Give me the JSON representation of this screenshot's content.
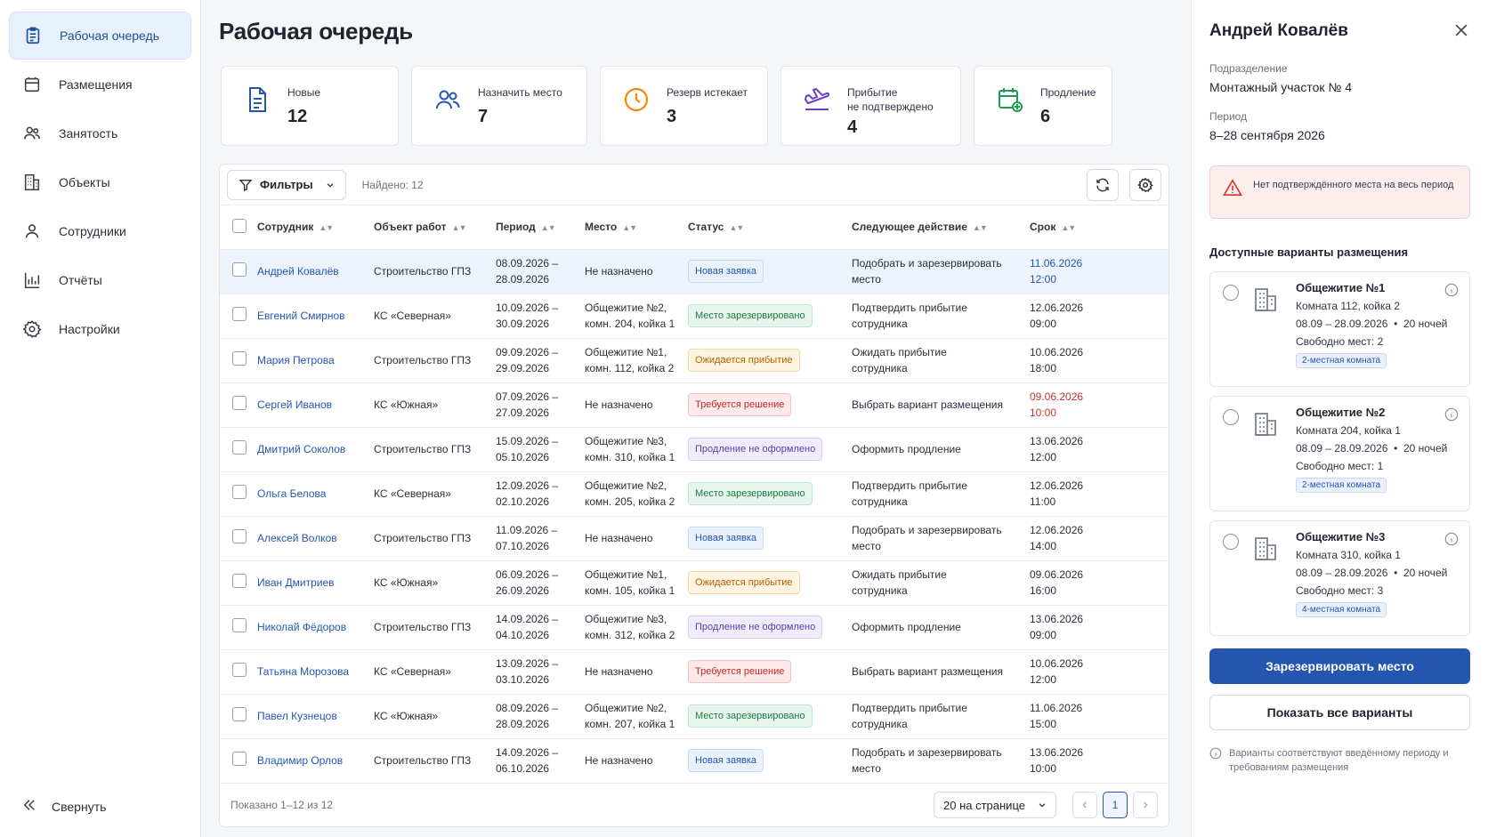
{
  "sidebar": {
    "items": [
      {
        "label": "Рабочая очередь",
        "icon": "clipboard-icon"
      },
      {
        "label": "Размещения",
        "icon": "bed-icon"
      },
      {
        "label": "Занятость",
        "icon": "users-icon"
      },
      {
        "label": "Объекты",
        "icon": "building-icon"
      },
      {
        "label": "Сотрудники",
        "icon": "user-icon"
      },
      {
        "label": "Отчёты",
        "icon": "chart-icon"
      },
      {
        "label": "Настройки",
        "icon": "gear-icon"
      }
    ],
    "collapse_label": "Свернуть"
  },
  "page": {
    "title": "Рабочая очередь"
  },
  "stats": [
    {
      "label": "Новые",
      "value": "12",
      "icon": "document-icon",
      "color": "#2456b0"
    },
    {
      "label": "Назначить место",
      "value": "7",
      "icon": "users-icon",
      "color": "#2456b0"
    },
    {
      "label": "Резерв истекает",
      "value": "3",
      "icon": "clock-icon",
      "color": "#f08a00"
    },
    {
      "label_line1": "Прибытие",
      "label_line2": "не подтверждено",
      "value": "4",
      "icon": "plane-arrival-icon",
      "color": "#6a3fc1"
    },
    {
      "label": "Продление",
      "value": "6",
      "icon": "calendar-add-icon",
      "color": "#1e9a55"
    }
  ],
  "toolbar": {
    "filters_label": "Фильтры",
    "found": "Найдено: 12"
  },
  "table": {
    "headers": [
      "Сотрудник",
      "Объект работ",
      "Период",
      "Место",
      "Статус",
      "Следующее действие",
      "Срок"
    ],
    "rows": [
      {
        "emp": "Андрей Ковалёв",
        "obj": "Строительство ГПЗ",
        "p1": "08.09.2026 –",
        "p2": "28.09.2026",
        "m1": "Не назначено",
        "m2": "",
        "status": "Новая заявка",
        "st": "new",
        "a1": "Подобрать и зарезервировать",
        "a2": "место",
        "d1": "11.06.2026",
        "d2": "12:00",
        "due": "blue",
        "selected": true
      },
      {
        "emp": "Евгений Смирнов",
        "obj": "КС «Северная»",
        "p1": "10.09.2026 –",
        "p2": "30.09.2026",
        "m1": "Общежитие №2,",
        "m2": "комн. 204, койка 1",
        "status": "Место зарезервировано",
        "st": "res",
        "a1": "Подтвердить прибытие",
        "a2": "сотрудника",
        "d1": "12.06.2026",
        "d2": "09:00",
        "due": ""
      },
      {
        "emp": "Мария Петрова",
        "obj": "Строительство ГПЗ",
        "p1": "09.09.2026 –",
        "p2": "29.09.2026",
        "m1": "Общежитие №1,",
        "m2": "комн. 112, койка 2",
        "status": "Ожидается прибытие",
        "st": "wait",
        "a1": "Ожидать прибытие",
        "a2": "сотрудника",
        "d1": "10.06.2026",
        "d2": "18:00",
        "due": ""
      },
      {
        "emp": "Сергей Иванов",
        "obj": "КС «Южная»",
        "p1": "07.09.2026 –",
        "p2": "27.09.2026",
        "m1": "Не назначено",
        "m2": "",
        "status": "Требуется решение",
        "st": "dec",
        "a1": "Выбрать вариант размещения",
        "a2": "",
        "d1": "09.06.2026",
        "d2": "10:00",
        "due": "red"
      },
      {
        "emp": "Дмитрий Соколов",
        "obj": "Строительство ГПЗ",
        "p1": "15.09.2026 –",
        "p2": "05.10.2026",
        "m1": "Общежитие №3,",
        "m2": "комн. 310, койка 1",
        "status": "Продление не оформлено",
        "st": "ext",
        "a1": "Оформить продление",
        "a2": "",
        "d1": "13.06.2026",
        "d2": "12:00",
        "due": ""
      },
      {
        "emp": "Ольга Белова",
        "obj": "КС «Северная»",
        "p1": "12.09.2026 –",
        "p2": "02.10.2026",
        "m1": "Общежитие №2,",
        "m2": "комн. 205, койка 2",
        "status": "Место зарезервировано",
        "st": "res",
        "a1": "Подтвердить прибытие",
        "a2": "сотрудника",
        "d1": "12.06.2026",
        "d2": "11:00",
        "due": ""
      },
      {
        "emp": "Алексей Волков",
        "obj": "Строительство ГПЗ",
        "p1": "11.09.2026 –",
        "p2": "07.10.2026",
        "m1": "Не назначено",
        "m2": "",
        "status": "Новая заявка",
        "st": "new",
        "a1": "Подобрать и зарезервировать",
        "a2": "место",
        "d1": "12.06.2026",
        "d2": "14:00",
        "due": ""
      },
      {
        "emp": "Иван Дмитриев",
        "obj": "КС «Южная»",
        "p1": "06.09.2026 –",
        "p2": "26.09.2026",
        "m1": "Общежитие №1,",
        "m2": "комн. 105, койка 1",
        "status": "Ожидается прибытие",
        "st": "wait",
        "a1": "Ожидать прибытие",
        "a2": "сотрудника",
        "d1": "09.06.2026",
        "d2": "16:00",
        "due": ""
      },
      {
        "emp": "Николай Фёдоров",
        "obj": "Строительство ГПЗ",
        "p1": "14.09.2026 –",
        "p2": "04.10.2026",
        "m1": "Общежитие №3,",
        "m2": "комн. 312, койка 2",
        "status": "Продление не оформлено",
        "st": "ext",
        "a1": "Оформить продление",
        "a2": "",
        "d1": "13.06.2026",
        "d2": "09:00",
        "due": ""
      },
      {
        "emp": "Татьяна Морозова",
        "obj": "КС «Северная»",
        "p1": "13.09.2026 –",
        "p2": "03.10.2026",
        "m1": "Не назначено",
        "m2": "",
        "status": "Требуется решение",
        "st": "dec",
        "a1": "Выбрать вариант размещения",
        "a2": "",
        "d1": "10.06.2026",
        "d2": "12:00",
        "due": ""
      },
      {
        "emp": "Павел Кузнецов",
        "obj": "КС «Южная»",
        "p1": "08.09.2026 –",
        "p2": "28.09.2026",
        "m1": "Общежитие №2,",
        "m2": "комн. 207, койка 1",
        "status": "Место зарезервировано",
        "st": "res",
        "a1": "Подтвердить прибытие",
        "a2": "сотрудника",
        "d1": "11.06.2026",
        "d2": "15:00",
        "due": ""
      },
      {
        "emp": "Владимир Орлов",
        "obj": "Строительство ГПЗ",
        "p1": "14.09.2026 –",
        "p2": "06.10.2026",
        "m1": "Не назначено",
        "m2": "",
        "status": "Новая заявка",
        "st": "new",
        "a1": "Подобрать и зарезервировать",
        "a2": "место",
        "d1": "13.06.2026",
        "d2": "10:00",
        "due": ""
      }
    ]
  },
  "footer": {
    "shown": "Показано 1–12 из 12",
    "per_page": "20 на странице",
    "current_page": "1"
  },
  "panel": {
    "title": "Андрей Ковалёв",
    "dept_label": "Подразделение",
    "dept_value": "Монтажный участок № 4",
    "period_label": "Период",
    "period_value": "8–28 сентября 2026",
    "warning": "Нет подтверждённого места на весь период",
    "options_title": "Доступные варианты размещения",
    "options": [
      {
        "name": "Общежитие №1",
        "room": "Комната 112, койка 2",
        "dates": "08.09 – 28.09.2026  •  20 ночей",
        "free": "Свободно мест: 2",
        "tag": "2-местная комната"
      },
      {
        "name": "Общежитие №2",
        "room": "Комната 204, койка 1",
        "dates": "08.09 – 28.09.2026  •  20 ночей",
        "free": "Свободно мест: 1",
        "tag": "2-местная комната"
      },
      {
        "name": "Общежитие №3",
        "room": "Комната 310, койка 1",
        "dates": "08.09 – 28.09.2026  •  20 ночей",
        "free": "Свободно мест: 3",
        "tag": "4-местная комната"
      }
    ],
    "reserve_label": "Зарезервировать место",
    "show_all_label": "Показать все варианты",
    "note": "Варианты соответствуют введённому периоду и требованиям размещения"
  }
}
